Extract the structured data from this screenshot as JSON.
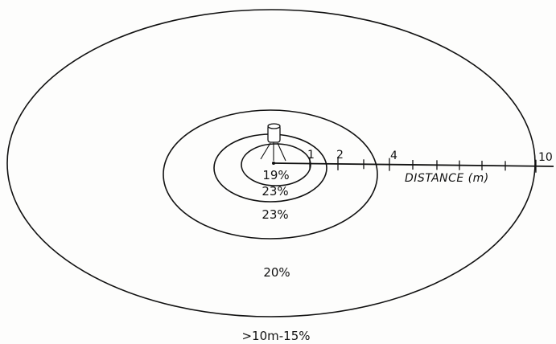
{
  "diagram": {
    "rings": [
      {
        "label": "19%"
      },
      {
        "label": "23%"
      },
      {
        "label": "23%"
      },
      {
        "label": "20%"
      }
    ],
    "outside_label": ">10m-15%",
    "distance_labels": [
      "1",
      "2",
      "4",
      "10"
    ],
    "axis_title": "DISTANCE (m)",
    "axis_ticks": [
      "1",
      "2",
      "3",
      "4",
      "5",
      "6",
      "7",
      "8",
      "9",
      "10"
    ]
  }
}
